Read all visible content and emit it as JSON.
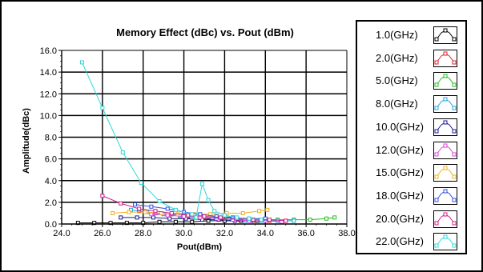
{
  "chart_data": {
    "type": "line",
    "title": "Memory Effect (dBc) vs. Pout (dBm)",
    "xlabel": "Pout(dBm)",
    "ylabel": "Amplitude(dBc)",
    "xlim": [
      24.0,
      38.0
    ],
    "ylim": [
      0.0,
      16.0
    ],
    "xticks": [
      "24.0",
      "26.0",
      "28.0",
      "30.0",
      "32.0",
      "34.0",
      "36.0",
      "38.0"
    ],
    "yticks": [
      "0.0",
      "2.0",
      "4.0",
      "6.0",
      "8.0",
      "10.0",
      "12.0",
      "14.0",
      "16.0"
    ],
    "grid": true,
    "legend_position": "right",
    "series": [
      {
        "name": "1.0(GHz)",
        "color": "#000000",
        "x": [
          24.8,
          25.6,
          26.4,
          27.2,
          28.0,
          28.8,
          29.6,
          30.4,
          31.2,
          32.0,
          32.8,
          33.6
        ],
        "y": [
          0.1,
          0.1,
          0.1,
          0.1,
          0.1,
          0.2,
          0.2,
          0.2,
          0.3,
          0.3,
          0.3,
          0.3
        ]
      },
      {
        "name": "2.0(GHz)",
        "color": "#e0202a",
        "x": [
          27.8,
          28.6,
          29.4,
          30.2,
          31.0,
          31.8,
          32.6,
          33.4,
          34.2,
          35.0
        ],
        "y": [
          1.2,
          1.0,
          0.9,
          0.7,
          0.6,
          0.5,
          0.4,
          0.3,
          0.3,
          0.3
        ]
      },
      {
        "name": "5.0(GHz)",
        "color": "#20c020",
        "x": [
          29.8,
          30.6,
          31.4,
          32.2,
          33.0,
          33.8,
          34.6,
          35.4,
          36.2,
          37.0,
          37.4
        ],
        "y": [
          0.7,
          0.6,
          0.5,
          0.5,
          0.4,
          0.4,
          0.4,
          0.4,
          0.4,
          0.5,
          0.6
        ]
      },
      {
        "name": "8.0(GHz)",
        "color": "#20a8e0",
        "x": [
          27.4,
          28.2,
          29.0,
          29.8,
          30.6,
          31.4,
          32.2,
          33.0,
          33.8,
          34.6,
          35.4
        ],
        "y": [
          1.3,
          1.1,
          0.9,
          0.8,
          0.6,
          0.5,
          0.4,
          0.3,
          0.3,
          0.3,
          0.3
        ]
      },
      {
        "name": "10.0(GHz)",
        "color": "#1c1c8c",
        "x": [
          26.9,
          27.7,
          28.5,
          29.3,
          30.1,
          30.9,
          31.7,
          32.5,
          33.3
        ],
        "y": [
          0.6,
          0.6,
          0.6,
          0.5,
          0.5,
          0.4,
          0.4,
          0.3,
          0.3
        ]
      },
      {
        "name": "12.0(GHz)",
        "color": "#e040e0",
        "x": [
          28.4,
          29.2,
          30.0,
          30.8,
          31.6,
          32.4,
          33.2,
          34.0,
          34.8
        ],
        "y": [
          0.9,
          0.8,
          0.7,
          0.6,
          0.5,
          0.4,
          0.3,
          0.3,
          0.2
        ]
      },
      {
        "name": "15.0(GHz)",
        "color": "#f0b020",
        "x": [
          26.5,
          27.3,
          28.1,
          28.9,
          29.7,
          30.5,
          31.3,
          32.1,
          32.9,
          33.7,
          34.1
        ],
        "y": [
          1.0,
          1.1,
          1.1,
          1.0,
          0.9,
          0.9,
          0.9,
          1.0,
          1.0,
          1.2,
          1.3
        ]
      },
      {
        "name": "18.0(GHz)",
        "color": "#3050e8",
        "x": [
          27.6,
          28.4,
          29.2,
          30.0,
          30.8,
          31.6,
          32.4,
          33.2,
          34.0
        ],
        "y": [
          1.8,
          1.6,
          1.4,
          1.1,
          0.9,
          0.7,
          0.6,
          0.5,
          0.5
        ]
      },
      {
        "name": "20.0(GHz)",
        "color": "#d0208c",
        "x": [
          26.0,
          26.9,
          27.8,
          28.6,
          29.4,
          30.2,
          31.0,
          31.8,
          32.6,
          33.4,
          34.2,
          35.0
        ],
        "y": [
          2.6,
          1.9,
          1.4,
          1.2,
          1.0,
          0.8,
          0.7,
          0.6,
          0.5,
          0.4,
          0.4,
          0.3
        ]
      },
      {
        "name": "22.0(GHz)",
        "color": "#30d8d8",
        "x": [
          25.0,
          26.0,
          27.0,
          27.9,
          28.8,
          29.6,
          30.4,
          30.6,
          30.9,
          31.2,
          31.5,
          32.0,
          32.6,
          33.2,
          33.8
        ],
        "y": [
          14.9,
          10.7,
          6.6,
          3.8,
          2.1,
          1.3,
          0.9,
          0.6,
          3.7,
          2.2,
          1.2,
          0.8,
          0.6,
          0.5,
          0.4
        ]
      }
    ]
  }
}
